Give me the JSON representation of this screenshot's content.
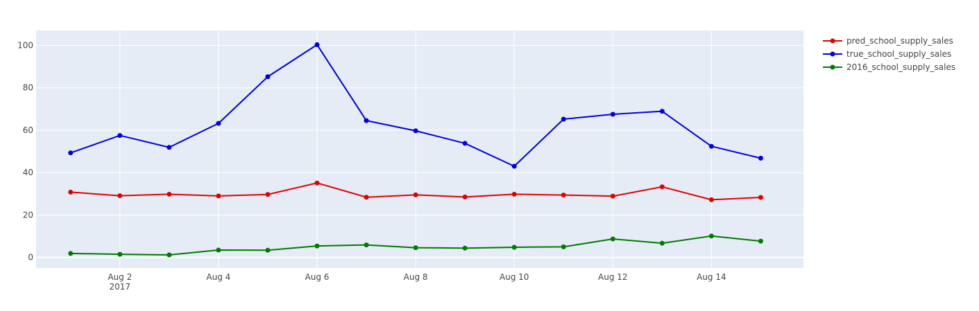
{
  "chart_data": {
    "type": "line",
    "title": "",
    "xlabel": "",
    "ylabel": "",
    "x": [
      "2017-08-01",
      "2017-08-02",
      "2017-08-03",
      "2017-08-04",
      "2017-08-05",
      "2017-08-06",
      "2017-08-07",
      "2017-08-08",
      "2017-08-09",
      "2017-08-10",
      "2017-08-11",
      "2017-08-12",
      "2017-08-13",
      "2017-08-14",
      "2017-08-15"
    ],
    "xlim": [
      "2017-07-31T07:12",
      "2017-08-15T20:48"
    ],
    "ylim": [
      -5,
      107
    ],
    "x_ticks": [
      {
        "value": "2017-08-02",
        "label": "Aug 2",
        "sublabel": "2017"
      },
      {
        "value": "2017-08-04",
        "label": "Aug 4",
        "sublabel": ""
      },
      {
        "value": "2017-08-06",
        "label": "Aug 6",
        "sublabel": ""
      },
      {
        "value": "2017-08-08",
        "label": "Aug 8",
        "sublabel": ""
      },
      {
        "value": "2017-08-10",
        "label": "Aug 10",
        "sublabel": ""
      },
      {
        "value": "2017-08-12",
        "label": "Aug 12",
        "sublabel": ""
      },
      {
        "value": "2017-08-14",
        "label": "Aug 14",
        "sublabel": ""
      }
    ],
    "y_ticks": [
      0,
      20,
      40,
      60,
      80,
      100
    ],
    "grid": true,
    "legend_position": "top-right",
    "series": [
      {
        "name": "pred_school_supply_sales",
        "color": "#e00000",
        "values": [
          30.8,
          29.1,
          29.8,
          29.0,
          29.7,
          35.1,
          28.4,
          29.5,
          28.5,
          29.8,
          29.4,
          28.9,
          33.3,
          27.2,
          28.3
        ]
      },
      {
        "name": "true_school_supply_sales",
        "color": "#0000dd",
        "values": [
          49.3,
          57.5,
          51.9,
          63.2,
          85.2,
          100.3,
          64.5,
          59.7,
          53.8,
          43.0,
          65.2,
          67.5,
          68.9,
          52.4,
          46.8
        ]
      },
      {
        "name": "2016_school_supply_sales",
        "color": "#007a00",
        "values": [
          1.9,
          1.5,
          1.2,
          3.5,
          3.4,
          5.4,
          5.9,
          4.6,
          4.4,
          4.8,
          5.0,
          8.7,
          6.7,
          10.1,
          7.7
        ]
      }
    ]
  }
}
